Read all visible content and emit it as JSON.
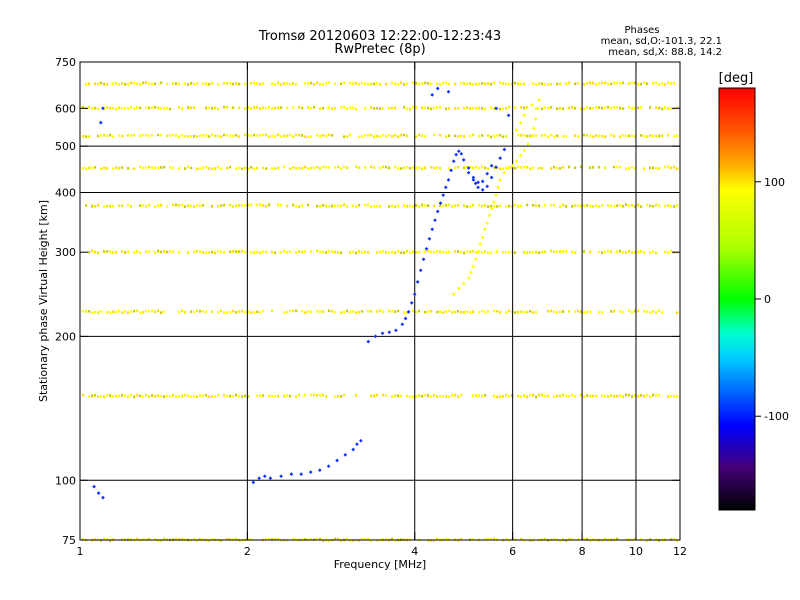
{
  "chart_data": {
    "type": "scatter",
    "title": "Tromsø 20120603 12:22:00-12:23:43",
    "subtitle": "RwPretec (8p)",
    "phase_box": {
      "heading": "Phases",
      "line1": "mean, sd,O:-101.3, 22.1",
      "line2": "mean, sd,X:  88.8, 14.2"
    },
    "xlabel": "Frequency [MHz]",
    "ylabel": "Stationary phase Virtual Height [km]",
    "x_scale": "log",
    "y_scale": "log",
    "xlim": [
      1,
      12
    ],
    "ylim": [
      75,
      750
    ],
    "x_ticks": [
      1,
      2,
      4,
      6,
      8,
      10,
      12
    ],
    "y_ticks": [
      75,
      100,
      200,
      300,
      400,
      500,
      600,
      750
    ],
    "x_gridlines": [
      2,
      4,
      6,
      8,
      10
    ],
    "y_gridlines": [
      100,
      200,
      400,
      500
    ],
    "colorbar": {
      "label": "[deg]",
      "range": [
        -180,
        180
      ],
      "ticks": [
        100,
        0,
        -100
      ]
    },
    "interference_bands_km": [
      75,
      150,
      225,
      300,
      375,
      450,
      525,
      600,
      675
    ],
    "series": [
      {
        "phase": -101.3,
        "points": [
          [
            1.06,
            97
          ],
          [
            1.08,
            94
          ],
          [
            1.1,
            92
          ],
          [
            1.09,
            560
          ],
          [
            1.1,
            600
          ],
          [
            2.05,
            99
          ],
          [
            2.1,
            101
          ],
          [
            2.15,
            102
          ],
          [
            2.2,
            101
          ],
          [
            2.3,
            102
          ],
          [
            2.4,
            103
          ],
          [
            2.5,
            103
          ],
          [
            2.6,
            104
          ],
          [
            2.7,
            105
          ],
          [
            2.8,
            107
          ],
          [
            2.9,
            110
          ],
          [
            3.0,
            113
          ],
          [
            3.1,
            116
          ],
          [
            3.15,
            119
          ],
          [
            3.2,
            121
          ],
          [
            3.3,
            195
          ],
          [
            3.4,
            200
          ],
          [
            3.5,
            203
          ],
          [
            3.6,
            204
          ],
          [
            3.7,
            206
          ],
          [
            3.8,
            212
          ],
          [
            3.85,
            218
          ],
          [
            3.9,
            225
          ],
          [
            3.95,
            235
          ],
          [
            4.0,
            245
          ],
          [
            4.05,
            260
          ],
          [
            4.1,
            275
          ],
          [
            4.15,
            290
          ],
          [
            4.2,
            305
          ],
          [
            4.25,
            320
          ],
          [
            4.3,
            335
          ],
          [
            4.35,
            350
          ],
          [
            4.4,
            365
          ],
          [
            4.45,
            380
          ],
          [
            4.5,
            395
          ],
          [
            4.55,
            410
          ],
          [
            4.6,
            425
          ],
          [
            4.65,
            445
          ],
          [
            4.7,
            465
          ],
          [
            4.75,
            480
          ],
          [
            4.8,
            488
          ],
          [
            4.85,
            482
          ],
          [
            4.9,
            468
          ],
          [
            5.0,
            450
          ],
          [
            5.1,
            430
          ],
          [
            5.15,
            418
          ],
          [
            5.2,
            410
          ],
          [
            5.3,
            405
          ],
          [
            5.4,
            412
          ],
          [
            5.5,
            430
          ],
          [
            5.6,
            452
          ],
          [
            5.7,
            472
          ],
          [
            5.8,
            492
          ],
          [
            5.0,
            440
          ],
          [
            5.1,
            425
          ],
          [
            5.2,
            420
          ],
          [
            5.3,
            422
          ],
          [
            5.4,
            438
          ],
          [
            5.5,
            455
          ],
          [
            4.3,
            640
          ],
          [
            4.4,
            660
          ],
          [
            4.6,
            650
          ],
          [
            5.6,
            600
          ],
          [
            5.9,
            580
          ]
        ]
      },
      {
        "phase": 88.8,
        "points": [
          [
            4.7,
            245
          ],
          [
            4.8,
            252
          ],
          [
            4.9,
            258
          ],
          [
            5.0,
            265
          ],
          [
            5.05,
            272
          ],
          [
            5.1,
            280
          ],
          [
            5.15,
            290
          ],
          [
            5.2,
            300
          ],
          [
            5.25,
            312
          ],
          [
            5.3,
            322
          ],
          [
            5.35,
            335
          ],
          [
            5.4,
            345
          ],
          [
            5.45,
            358
          ],
          [
            5.5,
            370
          ],
          [
            5.55,
            382
          ],
          [
            5.6,
            395
          ],
          [
            5.65,
            410
          ],
          [
            5.7,
            425
          ],
          [
            5.8,
            440
          ],
          [
            5.9,
            450
          ],
          [
            6.0,
            455
          ],
          [
            6.1,
            465
          ],
          [
            6.2,
            478
          ],
          [
            6.3,
            490
          ],
          [
            6.4,
            505
          ],
          [
            6.5,
            525
          ],
          [
            6.55,
            545
          ],
          [
            6.6,
            570
          ],
          [
            6.65,
            600
          ],
          [
            6.7,
            625
          ],
          [
            6.1,
            540
          ],
          [
            6.2,
            560
          ],
          [
            6.3,
            580
          ],
          [
            6.5,
            610
          ]
        ]
      }
    ]
  }
}
